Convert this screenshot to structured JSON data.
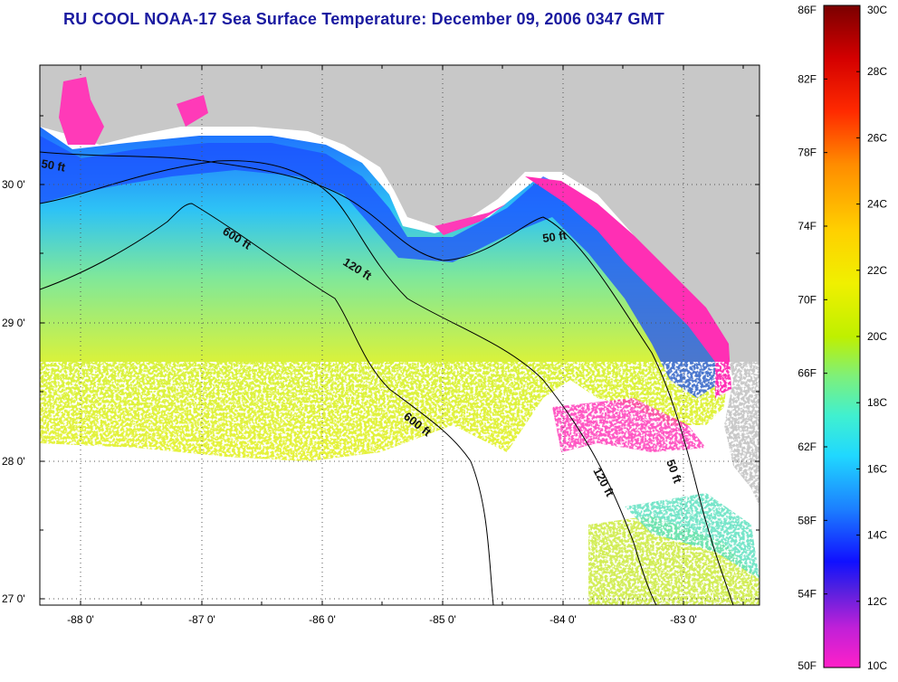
{
  "title": "RU COOL  NOAA-17  Sea Surface Temperature:  December 09, 2006 0347 GMT",
  "map": {
    "lat_ticks": [
      "30 0'",
      "29 0'",
      "28 0'",
      "27 0'"
    ],
    "lon_ticks": [
      "-88 0'",
      "-87 0'",
      "-86 0'",
      "-85 0'",
      "-84 0'",
      "-83 0'"
    ],
    "colors": {
      "land": "#c8c8c8",
      "gridline": "#555555",
      "contour": "#000000"
    },
    "contours": [
      {
        "id": "c50w",
        "label": "50 ft"
      },
      {
        "id": "c600a",
        "label": "600 ft"
      },
      {
        "id": "c120a",
        "label": "120 ft"
      },
      {
        "id": "c50e",
        "label": "50 ft"
      },
      {
        "id": "c600b",
        "label": "600 ft"
      },
      {
        "id": "c120b",
        "label": "120 ft"
      },
      {
        "id": "c50s",
        "label": "50 ft"
      }
    ]
  },
  "colorbar": {
    "fahrenheit": [
      "86F",
      "82F",
      "78F",
      "74F",
      "70F",
      "66F",
      "62F",
      "58F",
      "54F",
      "50F"
    ],
    "celsius": [
      "30C",
      "28C",
      "26C",
      "24C",
      "22C",
      "20C",
      "18C",
      "16C",
      "14C",
      "12C",
      "10C"
    ]
  }
}
